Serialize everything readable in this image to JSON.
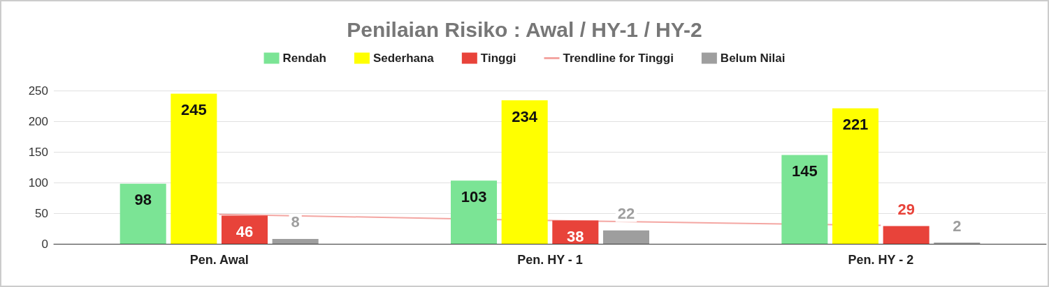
{
  "chart_data": {
    "type": "bar",
    "title": "Penilaian Risiko : Awal / HY-1 / HY-2",
    "categories": [
      "Pen. Awal",
      "Pen. HY - 1",
      "Pen. HY - 2"
    ],
    "series": [
      {
        "name": "Rendah",
        "color": "#7be495",
        "values": [
          98,
          103,
          145
        ],
        "value_labels": [
          "98",
          "103",
          "145"
        ]
      },
      {
        "name": "Sederhana",
        "color": "#ffff00",
        "values": [
          245,
          234,
          221
        ],
        "value_labels": [
          "245",
          "234",
          "221"
        ]
      },
      {
        "name": "Tinggi",
        "color": "#e8433a",
        "values": [
          46,
          38,
          29
        ],
        "value_labels": [
          "46",
          "38",
          "29"
        ]
      },
      {
        "name": "Trendline for Tinggi",
        "type": "line",
        "color": "#f4a6a2",
        "values": [
          48,
          38,
          30
        ]
      },
      {
        "name": "Belum Nilai",
        "color": "#9e9e9e",
        "values": [
          8,
          22,
          2
        ],
        "value_labels": [
          "8",
          "22",
          "2"
        ]
      }
    ],
    "ylim": [
      0,
      250
    ],
    "yticks": [
      0,
      50,
      100,
      150,
      200,
      250
    ],
    "grid": "y",
    "legend": "top",
    "marker": "none"
  }
}
